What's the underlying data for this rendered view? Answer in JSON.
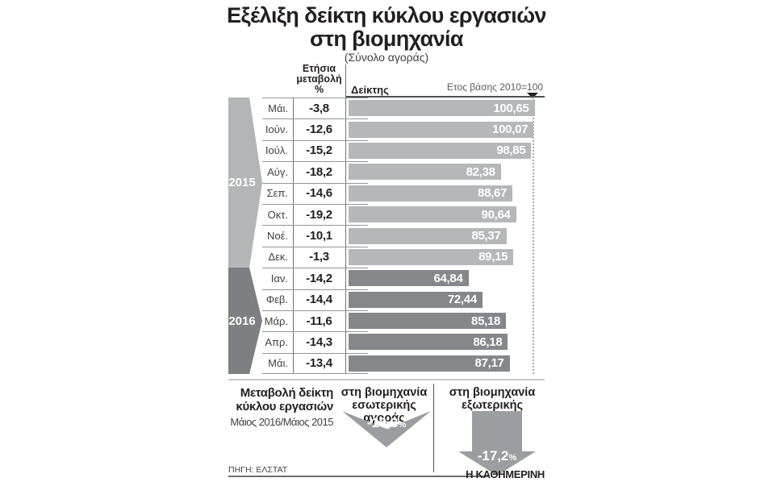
{
  "title": {
    "line1": "Εξέλιξη δείκτη κύκλου εργασιών",
    "line2": "στη βιομηχανία",
    "subtitle": "(Σύνολο αγοράς)"
  },
  "colors": {
    "bar_2015": "#b5b7b9",
    "bar_2016": "#85878a",
    "banner_2015": "#b3b5b7",
    "banner_2016": "#7d7f82",
    "arrow": "#9b9da0",
    "text": "#231f20"
  },
  "table": {
    "change_header_line1": "Ετήσια",
    "change_header_line2": "μεταβολή",
    "change_header_line3": "%",
    "index_header": "Δείκτης",
    "base_year_note": "Ετος βάσης 2010=100",
    "groups": [
      {
        "year": "2015",
        "bar_color": "#b5b7b9",
        "banner_color": "#b3b5b7",
        "rows": [
          {
            "month": "Μάι.",
            "change": "-3,8",
            "index": "100,65"
          },
          {
            "month": "Ιούν.",
            "change": "-12,6",
            "index": "100,07"
          },
          {
            "month": "Ιούλ.",
            "change": "-15,2",
            "index": "98,85"
          },
          {
            "month": "Αύγ.",
            "change": "-18,2",
            "index": "82,38"
          },
          {
            "month": "Σεπ.",
            "change": "-14,6",
            "index": "88,67"
          },
          {
            "month": "Οκτ.",
            "change": "-19,2",
            "index": "90,64"
          },
          {
            "month": "Νοέ.",
            "change": "-10,1",
            "index": "85,37"
          },
          {
            "month": "Δεκ.",
            "change": "-1,3",
            "index": "89,15"
          }
        ]
      },
      {
        "year": "2016",
        "bar_color": "#85878a",
        "banner_color": "#7d7f82",
        "rows": [
          {
            "month": "Ιαν.",
            "change": "-14,2",
            "index": "64,84"
          },
          {
            "month": "Φεβ.",
            "change": "-14,4",
            "index": "72,44"
          },
          {
            "month": "Μάρ.",
            "change": "-11,6",
            "index": "85,18"
          },
          {
            "month": "Απρ.",
            "change": "-14,3",
            "index": "86,18"
          },
          {
            "month": "Μάι.",
            "change": "-13,4",
            "index": "87,17"
          }
        ]
      }
    ]
  },
  "summary": {
    "label_line1": "Μεταβολή δείκτη",
    "label_line2": "κύκλου εργασιών",
    "period": "Μάιος 2016/Μάιος 2015",
    "domestic": {
      "line1": "στη βιομηχανία",
      "line2": "εσωτερικής αγοράς",
      "value": "-10,3",
      "unit": "%"
    },
    "external": {
      "line1": "στη βιομηχανία",
      "line2": "εξωτερικής αγοράς",
      "value": "-17,2",
      "unit": "%"
    }
  },
  "footer": {
    "source": "ΠΗΓΗ: ΕΛΣΤΑΤ",
    "brand": "Η ΚΑΘΗΜΕΡΙΝΗ"
  },
  "chart_data": {
    "type": "bar",
    "orientation": "horizontal",
    "title": "Εξέλιξη δείκτη κύκλου εργασιών στη βιομηχανία",
    "subtitle": "(Σύνολο αγοράς)",
    "base_note": "Ετος βάσης 2010=100",
    "categories": [
      "Μάι. 2015",
      "Ιούν. 2015",
      "Ιούλ. 2015",
      "Αύγ. 2015",
      "Σεπ. 2015",
      "Οκτ. 2015",
      "Νοέ. 2015",
      "Δεκ. 2015",
      "Ιαν. 2016",
      "Φεβ. 2016",
      "Μάρ. 2016",
      "Απρ. 2016",
      "Μάι. 2016"
    ],
    "series": [
      {
        "name": "Ετήσια μεταβολή %",
        "values": [
          -3.8,
          -12.6,
          -15.2,
          -18.2,
          -14.6,
          -19.2,
          -10.1,
          -1.3,
          -14.2,
          -14.4,
          -11.6,
          -14.3,
          -13.4
        ]
      },
      {
        "name": "Δείκτης (2010=100)",
        "values": [
          100.65,
          100.07,
          98.85,
          82.38,
          88.67,
          90.64,
          85.37,
          89.15,
          64.84,
          72.44,
          85.18,
          86.18,
          87.17
        ]
      }
    ],
    "xlim": [
      0,
      105
    ],
    "reference_line": 100,
    "legend_position": "none",
    "grid": false,
    "annotations": [
      "Μεταβολή δείκτη κύκλου εργασιών Μάιος 2016/Μάιος 2015: στη βιομηχανία εσωτερικής αγοράς -10,3%",
      "Μεταβολή δείκτη κύκλου εργασιών Μάιος 2016/Μάιος 2015: στη βιομηχανία εξωτερικής αγοράς -17,2%"
    ]
  }
}
